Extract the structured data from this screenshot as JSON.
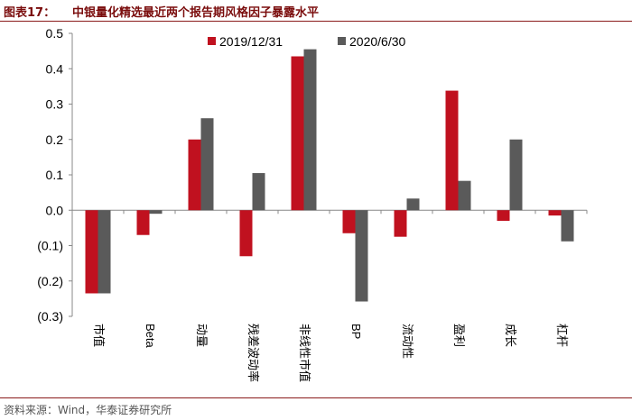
{
  "header": {
    "label": "图表17：",
    "title": "中银量化精选最近两个报告期风格因子暴露水平"
  },
  "source": "资料来源：Wind，华泰证券研究所",
  "colors": {
    "series1": "#c0111f",
    "series2": "#5a5a5a",
    "accent": "#7a0c0c"
  },
  "chart_data": {
    "type": "bar",
    "categories": [
      "市值",
      "Beta",
      "动量",
      "残差波动率",
      "非线性市值",
      "BP",
      "流动性",
      "盈利",
      "成长",
      "杠杆"
    ],
    "series": [
      {
        "name": "2019/12/31",
        "values": [
          -0.235,
          -0.07,
          0.2,
          -0.13,
          0.435,
          -0.065,
          -0.075,
          0.338,
          -0.03,
          -0.015
        ]
      },
      {
        "name": "2020/6/30",
        "values": [
          -0.235,
          -0.01,
          0.26,
          0.105,
          0.455,
          -0.258,
          0.033,
          0.083,
          0.2,
          -0.088
        ]
      }
    ],
    "yticks": [
      0.5,
      0.4,
      0.3,
      0.2,
      0.1,
      0.0,
      -0.1,
      -0.2,
      -0.3
    ],
    "ytick_labels": [
      "0.5",
      "0.4",
      "0.3",
      "0.2",
      "0.1",
      "0.0",
      "(0.1)",
      "(0.2)",
      "(0.3)"
    ],
    "ylim": [
      -0.3,
      0.5
    ],
    "legend": "top-center",
    "grid": false
  }
}
